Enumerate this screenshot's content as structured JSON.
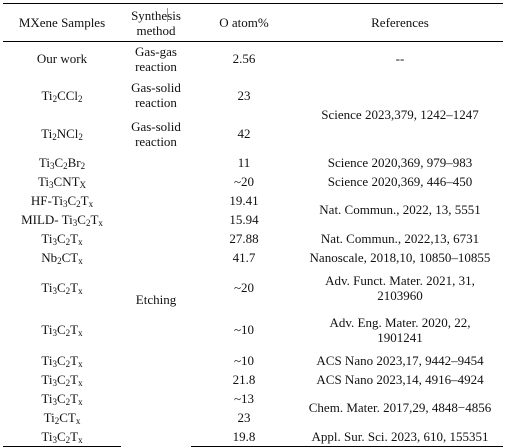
{
  "headers": {
    "samples": "MXene Samples",
    "method_line1": "Synthesis",
    "method_line2": "method",
    "o_atom": "O atom%",
    "references": "References"
  },
  "rows": [
    {
      "sample": "Our work",
      "method": "Gas-gas reaction",
      "o_atom": "2.56",
      "reference": "--"
    },
    {
      "sample_base": "Ti",
      "sample_sub1": "2",
      "sample_mid": "CCl",
      "sample_sub2": "2",
      "method": "Gas-solid reaction",
      "o_atom": "23",
      "reference": "Science 2023,379, 1242–1247"
    },
    {
      "sample_base": "Ti",
      "sample_sub1": "2",
      "sample_mid": "NCl",
      "sample_sub2": "2",
      "method": "Gas-solid reaction",
      "o_atom": "42"
    },
    {
      "sample_base": "Ti",
      "sample_sub1": "3",
      "sample_mid": "C",
      "sample_sub2": "2",
      "sample_tail": "Br",
      "sample_sub3": "2",
      "o_atom": "11",
      "reference": "Science 2020,369, 979–983"
    },
    {
      "sample_base": "Ti",
      "sample_sub1": "3",
      "sample_mid": "CNT",
      "sample_sub2": "X",
      "o_atom": "~20",
      "reference": "Science 2020,369, 446–450"
    },
    {
      "sample_pre": "HF-",
      "sample_base": "Ti",
      "sample_sub1": "3",
      "sample_mid": "C",
      "sample_sub2": "2",
      "sample_tail": "T",
      "sample_sub3": "x",
      "o_atom": "19.41",
      "reference": "Nat. Commun., 2022, 13, 5551"
    },
    {
      "sample_pre": "MILD- ",
      "sample_base": "Ti",
      "sample_sub1": "3",
      "sample_mid": "C",
      "sample_sub2": "2",
      "sample_tail": "T",
      "sample_sub3": "x",
      "o_atom": "15.94"
    },
    {
      "sample_base": "Ti",
      "sample_sub1": "3",
      "sample_mid": "C",
      "sample_sub2": "2",
      "sample_tail": "T",
      "sample_sub3": "x",
      "o_atom": "27.88",
      "reference": "Nat. Commun., 2022,13, 6731"
    },
    {
      "sample_base": "Nb",
      "sample_sub1": "2",
      "sample_mid": "CT",
      "sample_sub2": "x",
      "o_atom": "41.7",
      "reference": "Nanoscale, 2018,10, 10850–10855"
    },
    {
      "sample_base": "Ti",
      "sample_sub1": "3",
      "sample_mid": "C",
      "sample_sub2": "2",
      "sample_tail": "T",
      "sample_sub3": "x",
      "method": "Etching",
      "o_atom": "~20",
      "reference_line1": "Adv. Funct. Mater. 2021, 31,",
      "reference_line2": "2103960"
    },
    {
      "sample_base": "Ti",
      "sample_sub1": "3",
      "sample_mid": "C",
      "sample_sub2": "2",
      "sample_tail": "T",
      "sample_sub3": "x",
      "o_atom": "~10",
      "reference_line1": "Adv. Eng. Mater. 2020, 22,",
      "reference_line2": "1901241"
    },
    {
      "sample_base": "Ti",
      "sample_sub1": "3",
      "sample_mid": "C",
      "sample_sub2": "2",
      "sample_tail": "T",
      "sample_sub3": "x",
      "o_atom": "~10",
      "reference": "ACS Nano 2023,17, 9442–9454"
    },
    {
      "sample_base": "Ti",
      "sample_sub1": "3",
      "sample_mid": "C",
      "sample_sub2": "2",
      "sample_tail": "T",
      "sample_sub3": "x",
      "o_atom": "21.8",
      "reference": "ACS Nano 2023,14, 4916–4924"
    },
    {
      "sample_base": "Ti",
      "sample_sub1": "3",
      "sample_mid": "C",
      "sample_sub2": "2",
      "sample_tail": "T",
      "sample_sub3": "x",
      "o_atom": "~13",
      "reference": "Chem. Mater. 2017,29, 4848−4856"
    },
    {
      "sample_base": "Ti",
      "sample_sub1": "2",
      "sample_mid": "CT",
      "sample_sub2": "x",
      "o_atom": "23"
    },
    {
      "sample_base": "Ti",
      "sample_sub1": "3",
      "sample_mid": "C",
      "sample_sub2": "2",
      "sample_tail": "T",
      "sample_sub3": "x",
      "o_atom": "19.8",
      "reference": "Appl. Sur. Sci. 2023, 610, 155351"
    }
  ]
}
